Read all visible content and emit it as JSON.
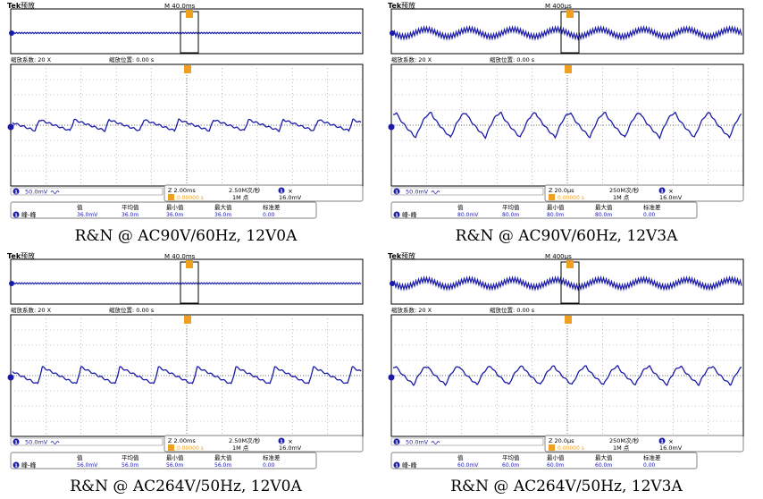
{
  "panels": [
    {
      "caption": "R&N @ AC90V/60Hz, 12V0A",
      "header": {
        "brand": "Tek",
        "mode": "预放",
        "timebase": "M 40.0ms"
      },
      "zoom": {
        "factor_label": "缩放系数: 20 X",
        "position_label": "缩放位置: 0.00 s"
      },
      "channel": {
        "number": "1",
        "scale": "50.0mV"
      },
      "zoom_info": {
        "time": "Z 2.00ms",
        "sample_rate": "2.50M次/秒",
        "points": "1M 点",
        "trig_pos": "0.00000 s",
        "trig_ch": "1",
        "trig_level": "16.0mV"
      },
      "measure": {
        "label": "峰-峰",
        "headers": [
          "值",
          "平均值",
          "最小值",
          "最大值",
          "标准差"
        ],
        "values": [
          "36.0mV",
          "36.0m",
          "36.0m",
          "36.0m",
          "0.00"
        ]
      }
    },
    {
      "caption": "R&N @ AC90V/60Hz, 12V3A",
      "header": {
        "brand": "Tek",
        "mode": "预放",
        "timebase": "M 400μs"
      },
      "zoom": {
        "factor_label": "缩放系数: 20 X",
        "position_label": "缩放位置: 0.00 s"
      },
      "channel": {
        "number": "1",
        "scale": "50.0mV"
      },
      "zoom_info": {
        "time": "Z 20.0μs",
        "sample_rate": "250M次/秒",
        "points": "1M 点",
        "trig_pos": "0.00000 s",
        "trig_ch": "1",
        "trig_level": "16.0mV"
      },
      "measure": {
        "label": "峰-峰",
        "headers": [
          "值",
          "平均值",
          "最小值",
          "最大值",
          "标准差"
        ],
        "values": [
          "80.0mV",
          "80.0m",
          "80.0m",
          "80.0m",
          "0.00"
        ]
      }
    },
    {
      "caption": "R&N @ AC264V/50Hz, 12V0A",
      "header": {
        "brand": "Tek",
        "mode": "预放",
        "timebase": "M 40.0ms"
      },
      "zoom": {
        "factor_label": "缩放系数: 20 X",
        "position_label": "缩放位置: 0.00 s"
      },
      "channel": {
        "number": "1",
        "scale": "50.0mV"
      },
      "zoom_info": {
        "time": "Z 2.00ms",
        "sample_rate": "2.50M次/秒",
        "points": "1M 点",
        "trig_pos": "0.00000 s",
        "trig_ch": "1",
        "trig_level": "16.0mV"
      },
      "measure": {
        "label": "峰-峰",
        "headers": [
          "值",
          "平均值",
          "最小值",
          "最大值",
          "标准差"
        ],
        "values": [
          "56.0mV",
          "56.0m",
          "56.0m",
          "56.0m",
          "0.00"
        ]
      }
    },
    {
      "caption": "R&N @ AC264V/50Hz, 12V3A",
      "header": {
        "brand": "Tek",
        "mode": "预放",
        "timebase": "M 400μs"
      },
      "zoom": {
        "factor_label": "缩放系数: 20 X",
        "position_label": "缩放位置: 0.00 s"
      },
      "channel": {
        "number": "1",
        "scale": "50.0mV"
      },
      "zoom_info": {
        "time": "Z 20.0μs",
        "sample_rate": "250M次/秒",
        "points": "1M 点",
        "trig_pos": "0.00000 s",
        "trig_ch": "1",
        "trig_level": "16.0mV"
      },
      "measure": {
        "label": "峰-峰",
        "headers": [
          "值",
          "平均值",
          "最小值",
          "最大值",
          "标准差"
        ],
        "values": [
          "60.0mV",
          "60.0m",
          "60.0m",
          "60.0m",
          "0.00"
        ]
      }
    }
  ],
  "chart_data": [
    {
      "type": "line",
      "waveform": "sawtooth",
      "cycles": 10,
      "peak_to_peak_mV": 36.0,
      "volts_per_div_mV": 50.0,
      "zoom_time_per_div": "2.00ms",
      "colors": {
        "trace": "#1a1aa8",
        "accent": "#f0a020"
      }
    },
    {
      "type": "line",
      "waveform": "ripple",
      "cycles": 10,
      "peak_to_peak_mV": 80.0,
      "volts_per_div_mV": 50.0,
      "zoom_time_per_div": "20.0μs",
      "colors": {
        "trace": "#1a1aa8",
        "accent": "#f0a020"
      }
    },
    {
      "type": "line",
      "waveform": "sawtooth",
      "cycles": 9,
      "peak_to_peak_mV": 56.0,
      "volts_per_div_mV": 50.0,
      "zoom_time_per_div": "2.00ms",
      "colors": {
        "trace": "#1a1aa8",
        "accent": "#f0a020"
      }
    },
    {
      "type": "line",
      "waveform": "ripple",
      "cycles": 11,
      "peak_to_peak_mV": 60.0,
      "volts_per_div_mV": 50.0,
      "zoom_time_per_div": "20.0μs",
      "colors": {
        "trace": "#1a1aa8",
        "accent": "#f0a020"
      }
    }
  ]
}
